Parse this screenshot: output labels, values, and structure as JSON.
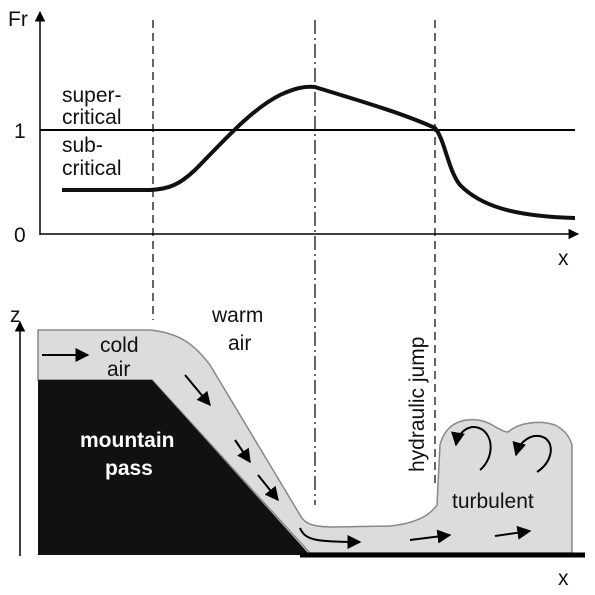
{
  "top_panel": {
    "y_axis_label": "Fr",
    "x_axis_label": "x",
    "tick_labels": [
      "1",
      "0"
    ],
    "supercritical_label": [
      "super-",
      "critical"
    ],
    "subcritical_label": [
      "sub-",
      "critical"
    ]
  },
  "bottom_panel": {
    "y_axis_label": "z",
    "x_axis_label": "x",
    "cold_air_label": [
      "cold",
      "air"
    ],
    "warm_air_label": [
      "warm",
      "air"
    ],
    "hydraulic_jump_label": "hydraulic jump",
    "mountain_pass_label": [
      "mountain",
      "pass"
    ],
    "turbulent_label": "turbulent"
  }
}
